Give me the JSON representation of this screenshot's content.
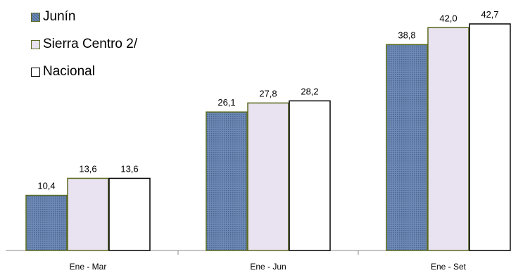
{
  "chart_data": {
    "type": "bar",
    "categories": [
      "Ene - Mar",
      "Ene - Jun",
      "Ene - Set"
    ],
    "series": [
      {
        "name": "Junín",
        "values": [
          10.4,
          26.1,
          38.8
        ],
        "value_labels": [
          "10,4",
          "26,1",
          "38,8"
        ],
        "color": "#6d89b5",
        "border": "#5a6a1e",
        "pattern": "dotted"
      },
      {
        "name": "Sierra Centro 2/",
        "values": [
          13.6,
          27.8,
          42.0
        ],
        "value_labels": [
          "13,6",
          "27,8",
          "42,0"
        ],
        "color": "#e9e2f0",
        "border": "#5a6a1e"
      },
      {
        "name": "Nacional",
        "values": [
          13.6,
          28.2,
          42.7
        ],
        "value_labels": [
          "13,6",
          "28,2",
          "42,7"
        ],
        "color": "#ffffff",
        "border": "#000000"
      }
    ],
    "ylim": [
      0,
      42.7
    ],
    "grid": false,
    "legend_position": "top-left",
    "title": "",
    "xlabel": "",
    "ylabel": ""
  }
}
